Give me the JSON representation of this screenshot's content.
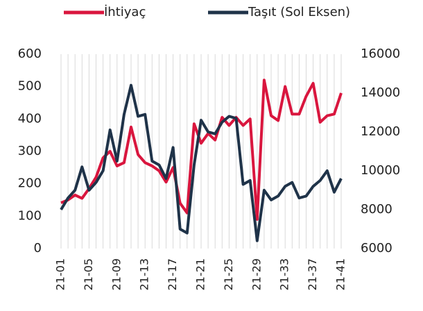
{
  "chart_data": {
    "type": "line",
    "categories": [
      "21-01",
      null,
      null,
      null,
      "21-05",
      null,
      null,
      null,
      "21-09",
      null,
      null,
      null,
      "21-13",
      null,
      null,
      null,
      "21-17",
      null,
      null,
      null,
      "21-21",
      null,
      null,
      null,
      "21-25",
      null,
      null,
      null,
      "21-29",
      null,
      null,
      null,
      "21-33",
      null,
      null,
      null,
      "21-37",
      null,
      null,
      null,
      "21-41"
    ],
    "series": [
      {
        "name": "İhtiyaç",
        "color": "#d9163e",
        "values": [
          141,
          150,
          165,
          155,
          185,
          220,
          280,
          300,
          255,
          265,
          375,
          290,
          265,
          255,
          240,
          205,
          250,
          140,
          110,
          385,
          325,
          355,
          335,
          405,
          380,
          405,
          380,
          400,
          90,
          520,
          410,
          395,
          500,
          415,
          415,
          470,
          510,
          390,
          410,
          415,
          480
        ]
      },
      {
        "name": "Taşıt (Sol Eksen)",
        "color": "#1f3349",
        "axis": "y2",
        "values": [
          8000,
          8600,
          9000,
          10200,
          9000,
          9400,
          10000,
          12100,
          10500,
          12900,
          14400,
          12800,
          12900,
          10500,
          10300,
          9600,
          11200,
          7000,
          6800,
          10300,
          12600,
          12000,
          11900,
          12500,
          12800,
          12700,
          9300,
          9500,
          6400,
          9000,
          8500,
          8700,
          9200,
          9400,
          8600,
          8700,
          9200,
          9500,
          10000,
          8900,
          9600
        ]
      }
    ],
    "ylim": [
      0,
      600
    ],
    "yticks": [
      0,
      100,
      200,
      300,
      400,
      500,
      600
    ],
    "y2lim": [
      6000,
      16000
    ],
    "y2ticks": [
      6000,
      8000,
      10000,
      12000,
      14000,
      16000
    ],
    "grid": true,
    "legend": "top"
  }
}
